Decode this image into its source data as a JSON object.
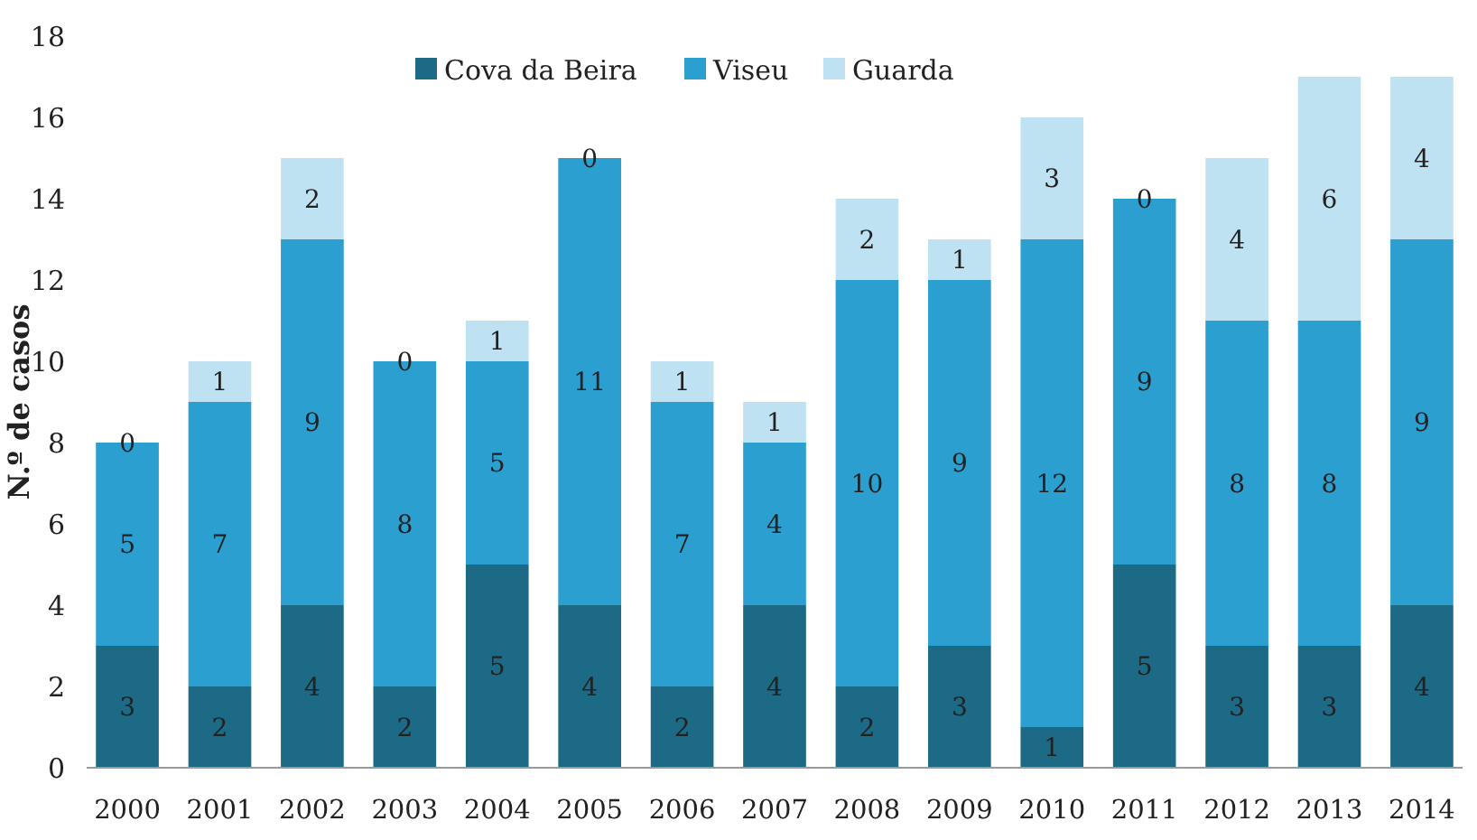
{
  "chart_data": {
    "type": "bar",
    "stacked": true,
    "ylabel": "N.º de casos",
    "categories": [
      "2000",
      "2001",
      "2002",
      "2003",
      "2004",
      "2005",
      "2006",
      "2007",
      "2008",
      "2009",
      "2010",
      "2011",
      "2012",
      "2013",
      "2014"
    ],
    "series": [
      {
        "name": "Cova da Beira",
        "color": "#1c6a86",
        "values": [
          3,
          2,
          4,
          2,
          5,
          4,
          2,
          4,
          2,
          3,
          1,
          5,
          3,
          3,
          4
        ]
      },
      {
        "name": "Viseu",
        "color": "#2a9fd0",
        "values": [
          5,
          7,
          9,
          8,
          5,
          11,
          7,
          4,
          10,
          9,
          12,
          9,
          8,
          8,
          9
        ]
      },
      {
        "name": "Guarda",
        "color": "#bfe2f2",
        "values": [
          0,
          1,
          2,
          0,
          1,
          0,
          1,
          1,
          2,
          1,
          3,
          0,
          4,
          6,
          4
        ]
      }
    ],
    "ylim": [
      0,
      18
    ],
    "yticks": [
      0,
      2,
      4,
      6,
      8,
      10,
      12,
      14,
      16,
      18
    ],
    "data_labels": true,
    "legend": "top",
    "grid": false
  }
}
